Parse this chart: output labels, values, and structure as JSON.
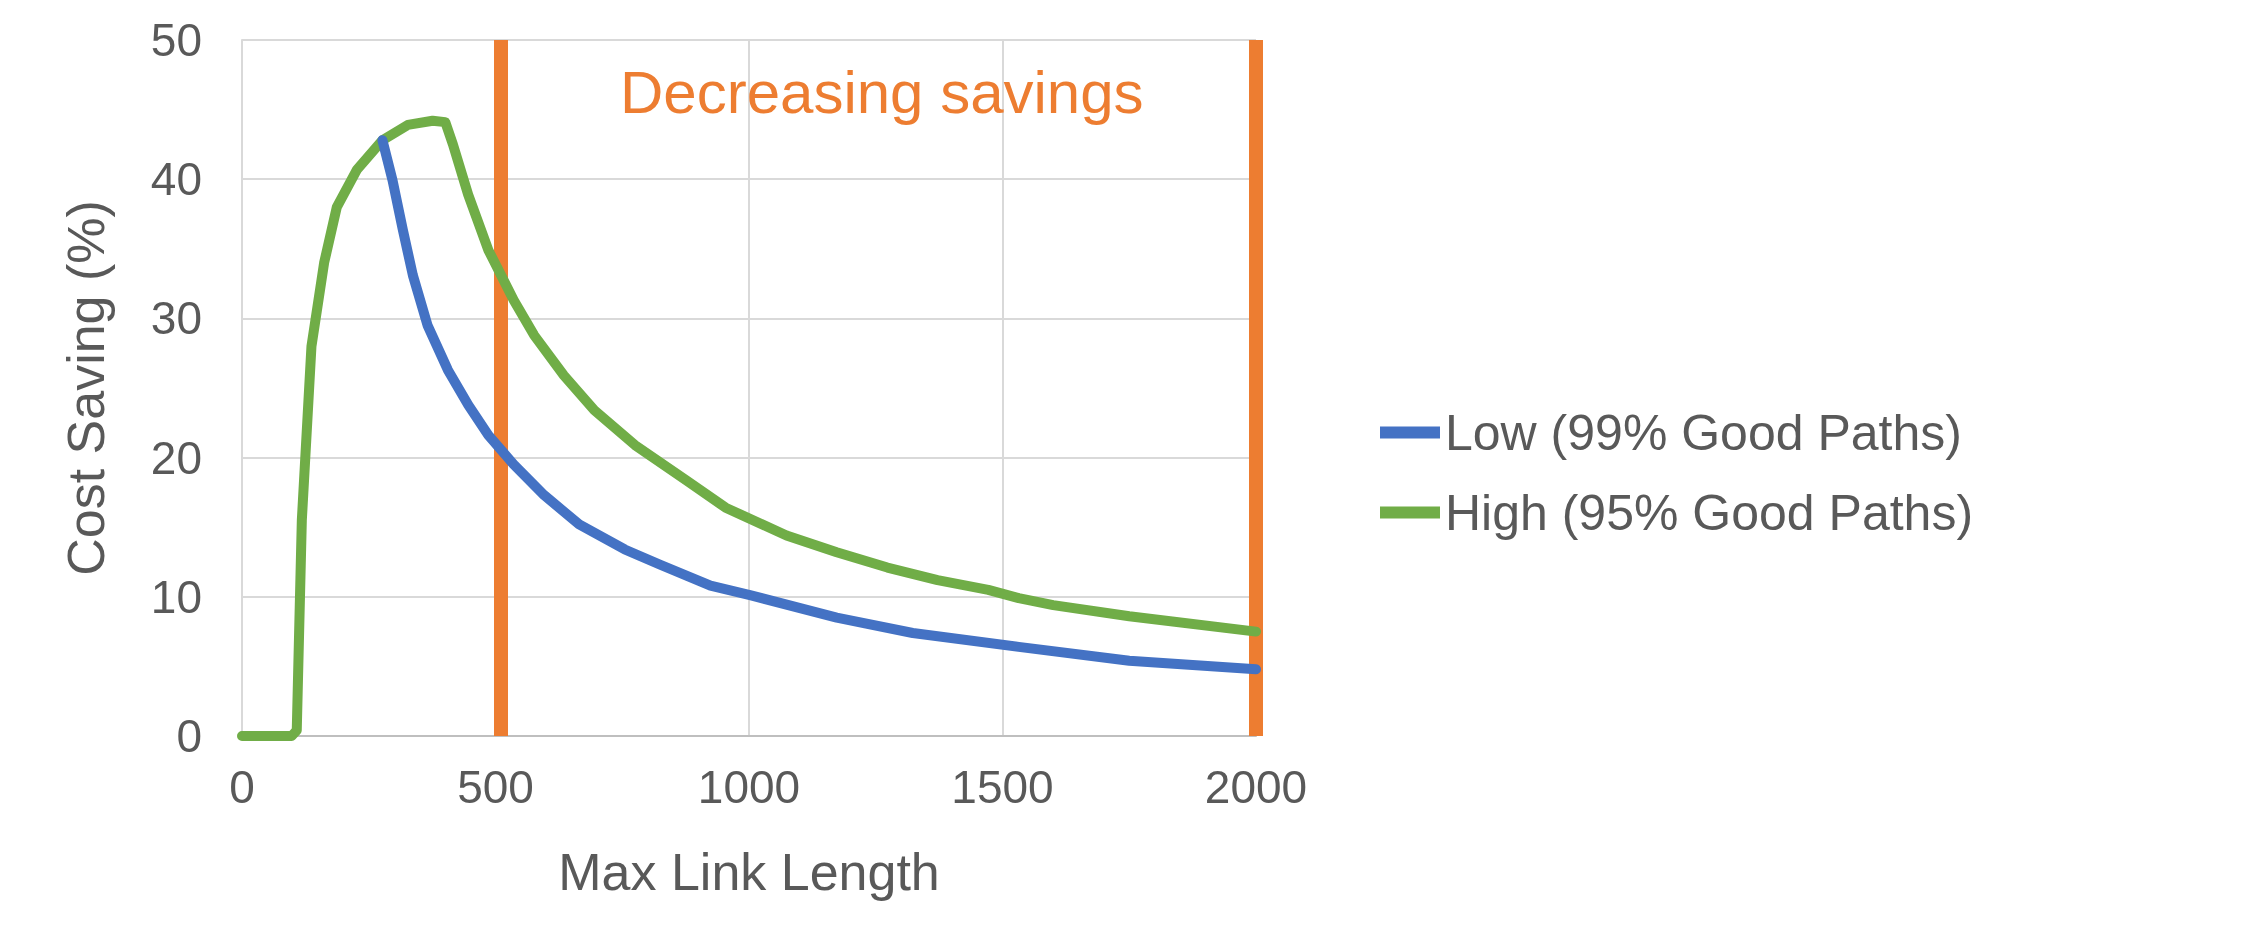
{
  "chart_data": {
    "type": "line",
    "xlabel": "Max Link Length",
    "ylabel": "Cost Saving (%)",
    "series": [
      {
        "name": "Low (99% Good Paths)",
        "color": "#4472c4",
        "x": [
          277,
          297,
          317,
          337,
          366,
          406,
          446,
          486,
          536,
          596,
          665,
          755,
          825,
          924,
          1004,
          1173,
          1323,
          1532,
          1750,
          2000
        ],
        "values": [
          42.8,
          39.9,
          36.4,
          33.1,
          29.5,
          26.3,
          23.8,
          21.6,
          19.5,
          17.3,
          15.2,
          13.4,
          12.3,
          10.8,
          10.1,
          8.5,
          7.4,
          6.4,
          5.4,
          4.8
        ]
      },
      {
        "name": "High (95% Good Paths)",
        "color": "#70ad47",
        "x": [
          0,
          98,
          108,
          118,
          137,
          162,
          187,
          227,
          277,
          327,
          376,
          401,
          416,
          446,
          486,
          536,
          576,
          635,
          695,
          775,
          875,
          954,
          1074,
          1173,
          1273,
          1372,
          1472,
          1532,
          1600,
          1750,
          2000
        ],
        "values": [
          0,
          0,
          0.4,
          15.5,
          28,
          34,
          38,
          40.7,
          42.8,
          43.9,
          44.2,
          44.1,
          42.5,
          38.9,
          34.9,
          31.3,
          28.8,
          25.9,
          23.4,
          20.9,
          18.4,
          16.4,
          14.4,
          13.2,
          12.1,
          11.2,
          10.5,
          9.9,
          9.4,
          8.6,
          7.5
        ]
      }
    ],
    "xlim": [
      0,
      2000
    ],
    "xticks": [
      0,
      500,
      1000,
      1500,
      2000
    ],
    "ylim": [
      0,
      50
    ],
    "yticks": [
      0,
      10,
      20,
      30,
      40,
      50
    ],
    "grid": true,
    "legend": "right",
    "marker": "none",
    "line_style": "solid",
    "ref_lines": [
      {
        "axis": "x",
        "value": 510,
        "color": "#ed7d31"
      },
      {
        "axis": "x",
        "value": 2000,
        "color": "#ed7d31"
      }
    ],
    "annotations": [
      "Decreasing savings"
    ]
  }
}
